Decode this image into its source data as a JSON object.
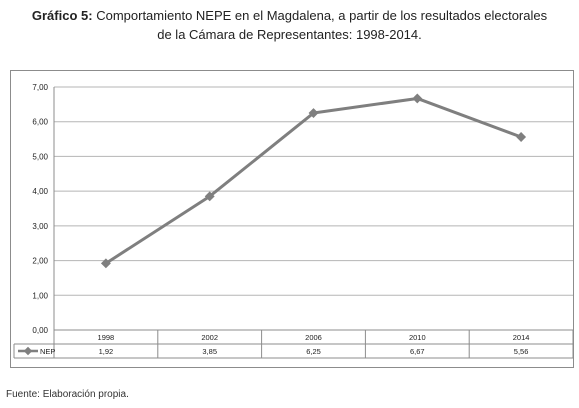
{
  "title": {
    "bold": "Gráfico 5:",
    "line1": "Comportamiento NEPE en el Magdalena, a partir de los resultados electorales",
    "line2": "de la Cámara de Representantes: 1998-2014."
  },
  "source_note": "Fuente: Elaboración propia.",
  "chart_data": {
    "type": "line",
    "categories": [
      "1998",
      "2002",
      "2006",
      "2010",
      "2014"
    ],
    "series": [
      {
        "name": "NEP",
        "values": [
          1.92,
          3.85,
          6.25,
          6.67,
          5.56
        ],
        "labels": [
          "1,92",
          "3,85",
          "6,25",
          "6,67",
          "5,56"
        ]
      }
    ],
    "yticks": [
      "0,00",
      "1,00",
      "2,00",
      "3,00",
      "4,00",
      "5,00",
      "6,00",
      "7,00"
    ],
    "ylim": [
      0,
      7
    ],
    "grid": true,
    "data_table": true,
    "line_color": "#7f7f7f"
  }
}
